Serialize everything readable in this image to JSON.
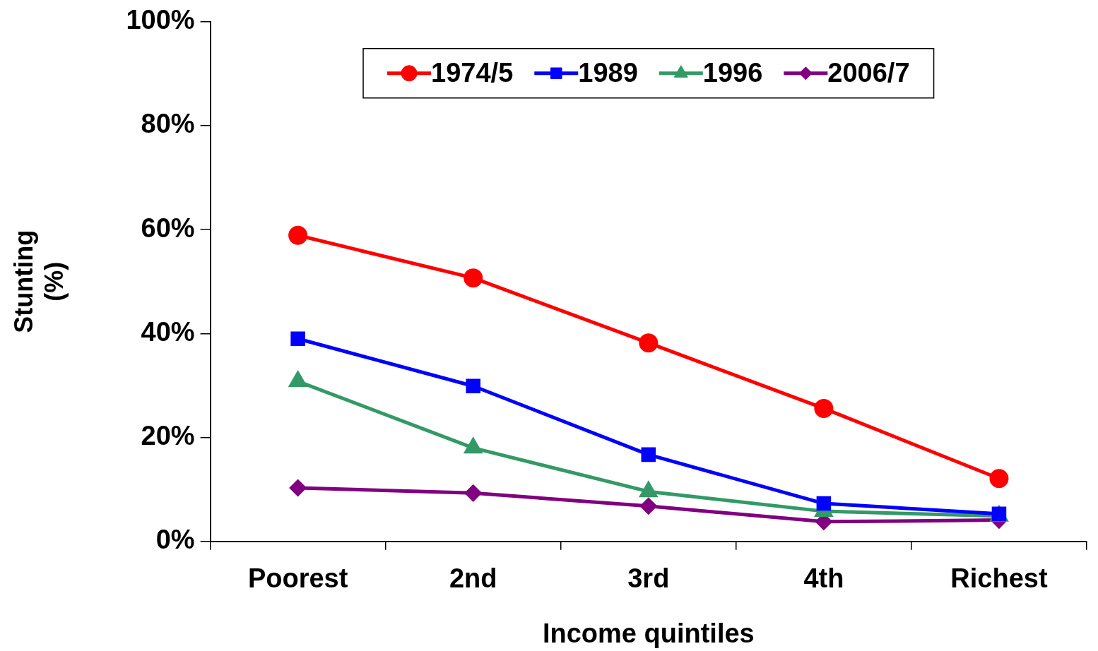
{
  "chart_data": {
    "type": "line",
    "xlabel": "Income quintiles",
    "ylabel": "Stunting\n(%)",
    "categories": [
      "Poorest",
      "2nd",
      "3rd",
      "4th",
      "Richest"
    ],
    "series": [
      {
        "name": "1974/5",
        "color": "#ff0000",
        "marker": "circle",
        "values": [
          58.9,
          50.7,
          38.2,
          25.6,
          12.1
        ]
      },
      {
        "name": "1989",
        "color": "#0000ff",
        "marker": "square",
        "values": [
          39.0,
          29.9,
          16.7,
          7.3,
          5.3
        ]
      },
      {
        "name": "1996",
        "color": "#339966",
        "marker": "triangle",
        "values": [
          30.8,
          18.0,
          9.6,
          5.8,
          4.9
        ]
      },
      {
        "name": "2006/7",
        "color": "#800080",
        "marker": "diamond",
        "values": [
          10.3,
          9.3,
          6.8,
          3.8,
          4.1
        ]
      }
    ],
    "ylim": [
      0,
      100
    ],
    "yticks": [
      {
        "value": 0,
        "label": "0%"
      },
      {
        "value": 20,
        "label": "20%"
      },
      {
        "value": 40,
        "label": "40%"
      },
      {
        "value": 60,
        "label": "60%"
      },
      {
        "value": 80,
        "label": "80%"
      },
      {
        "value": 100,
        "label": "100%"
      }
    ],
    "grid": false,
    "legend": "top",
    "line_style": "solid"
  }
}
